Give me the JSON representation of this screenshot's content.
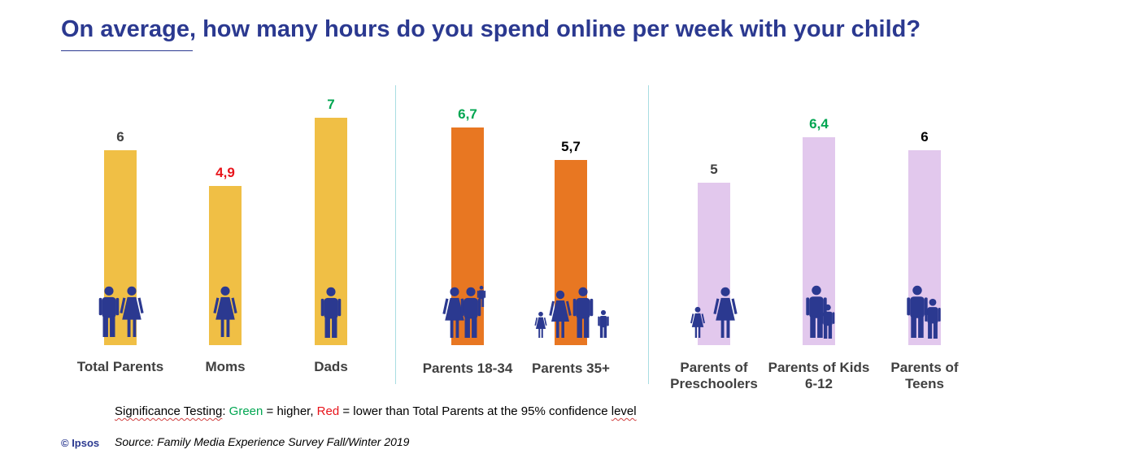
{
  "title": "On average, how many hours do you spend online per week with your child?",
  "chart_data": {
    "type": "bar",
    "title": "On average, how many hours do you spend online per week with your child?",
    "ylabel": "",
    "xlabel": "",
    "ylim": [
      0,
      7
    ],
    "groups": [
      {
        "name": "all",
        "color": "#f0bf45",
        "bars": [
          {
            "label": [
              "Total Parents"
            ],
            "value": 6,
            "value_label": "6",
            "label_color": "#404040",
            "icon": "couple-icon"
          },
          {
            "label": [
              "Moms"
            ],
            "value": 4.9,
            "value_label": "4,9",
            "label_color": "#e8141b",
            "icon": "woman-icon"
          },
          {
            "label": [
              "Dads"
            ],
            "value": 7,
            "value_label": "7",
            "label_color": "#00a651",
            "icon": "man-icon"
          }
        ]
      },
      {
        "name": "age",
        "color": "#e87722",
        "bars": [
          {
            "label": [
              "Parents 18-34"
            ],
            "value": 6.7,
            "value_label": "6,7",
            "label_color": "#00a651",
            "icon": "young-parents-icon"
          },
          {
            "label": [
              "Parents 35+"
            ],
            "value": 5.7,
            "value_label": "5,7",
            "label_color": "#000000",
            "icon": "family-icon"
          }
        ]
      },
      {
        "name": "child-age",
        "color": "#e2c8ed",
        "bars": [
          {
            "label": [
              "Parents of",
              "Preschoolers"
            ],
            "value": 5,
            "value_label": "5",
            "label_color": "#404040",
            "icon": "parent-preschooler-icon"
          },
          {
            "label": [
              "Parents of Kids",
              "6-12"
            ],
            "value": 6.4,
            "value_label": "6,4",
            "label_color": "#00a651",
            "icon": "parent-kid-icon"
          },
          {
            "label": [
              "Parents of",
              "Teens"
            ],
            "value": 6,
            "value_label": "6",
            "label_color": "#000000",
            "icon": "parent-teen-icon"
          }
        ]
      }
    ]
  },
  "footnote": {
    "prefix": "Significance Testing",
    "colon": ": ",
    "green_word": "Green",
    "green_text": " = higher, ",
    "red_word": "Red",
    "red_text": " = lower than Total Parents at the 95% confidence ",
    "level_word": "level",
    "green_color": "#00a651",
    "red_color": "#e8141b"
  },
  "source": "Source: Family Media Experience Survey Fall/Winter 2019",
  "copyright": "© Ipsos",
  "icon_color": "#2b3990"
}
